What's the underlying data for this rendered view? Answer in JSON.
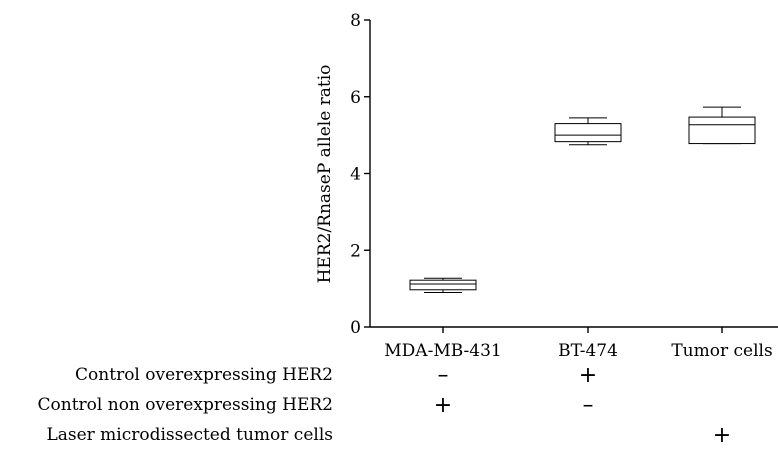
{
  "chart_data": {
    "type": "box",
    "ylabel": "HER2/RnaseP allele ratio",
    "ylim": [
      0,
      8
    ],
    "yticks": [
      "0",
      "2",
      "4",
      "6",
      "8"
    ],
    "categories": [
      "MDA-MB-431",
      "BT-474",
      "Tumor cells"
    ],
    "boxes": [
      {
        "category": "MDA-MB-431",
        "min": 0.9,
        "q1": 0.97,
        "median": 1.12,
        "q3": 1.22,
        "max": 1.27
      },
      {
        "category": "BT-474",
        "min": 4.75,
        "q1": 4.83,
        "median": 5.0,
        "q3": 5.3,
        "max": 5.45
      },
      {
        "category": "Tumor cells",
        "min": 4.78,
        "q1": 4.78,
        "median": 5.27,
        "q3": 5.47,
        "max": 5.73
      }
    ],
    "conditions": [
      {
        "label": "Control overexpressing  HER2",
        "marks": [
          "-",
          "+",
          ""
        ]
      },
      {
        "label": "Control non overexpressing  HER2",
        "marks": [
          "+",
          "-",
          ""
        ]
      },
      {
        "label": "Laser microdissected tumor cells",
        "marks": [
          "",
          "",
          "+"
        ]
      }
    ]
  }
}
